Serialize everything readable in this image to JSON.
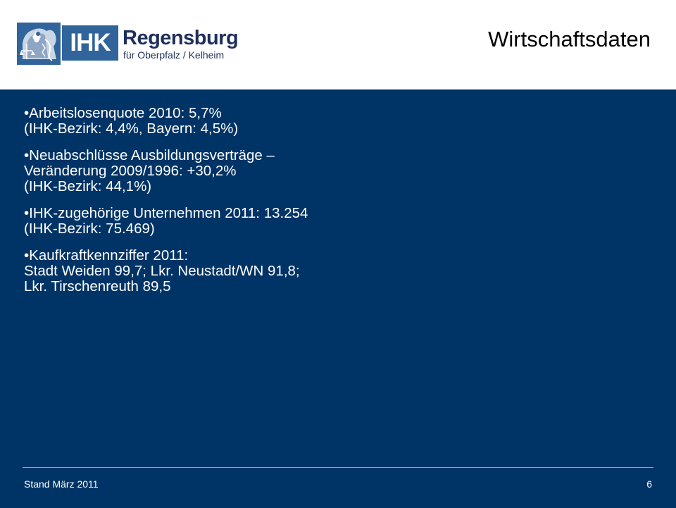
{
  "logo": {
    "emblem_icon": "ihk-emblem-icon",
    "mark": "IHK",
    "city": "Regensburg",
    "region": "für Oberpfalz / Kelheim",
    "brand_color": "#31649b",
    "text_color": "#1d2f5c"
  },
  "slide": {
    "title": "Wirtschaftsdaten",
    "panel_color": "#003366"
  },
  "bullets": [
    {
      "lines": [
        "•Arbeitslosenquote 2010: 5,7%",
        "(IHK-Bezirk: 4,4%, Bayern: 4,5%)"
      ]
    },
    {
      "lines": [
        "•Neuabschlüsse Ausbildungsverträge –",
        "Veränderung 2009/1996: +30,2%",
        "(IHK-Bezirk: 44,1%)"
      ]
    },
    {
      "lines": [
        "•IHK-zugehörige Unternehmen 2011: 13.254",
        "(IHK-Bezirk: 75.469)"
      ]
    },
    {
      "lines": [
        "•Kaufkraftkennziffer 2011:",
        "Stadt Weiden 99,7; Lkr. Neustadt/WN 91,8;",
        "Lkr. Tirschenreuth 89,5"
      ]
    }
  ],
  "footer": {
    "date": "Stand März 2011",
    "page_number": "6"
  }
}
